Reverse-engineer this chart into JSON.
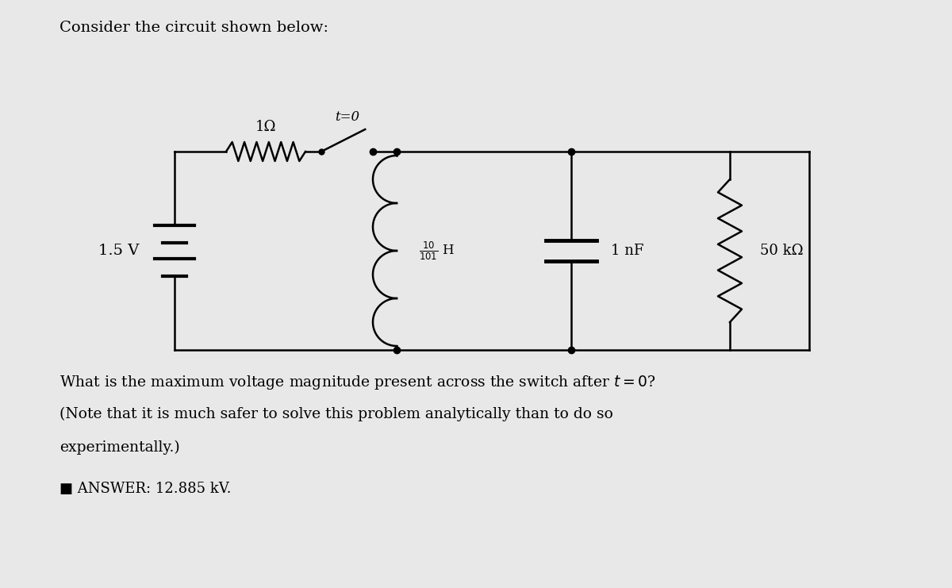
{
  "title": "Consider the circuit shown below:",
  "question_line1": "What is the maximum voltage magnitude present across the switch after $t = 0$?",
  "question_line2": "(Note that it is much safer to solve this problem analytically than to do so",
  "question_line3": "experimentally.)",
  "answer": "■ ANSWER: 12.885 kV.",
  "bg_color": "#e8e8e8",
  "voltage_label": "1.5 V",
  "resistor1_label": "1Ω",
  "switch_label": "t=0",
  "capacitor_label": "1 nF",
  "resistor2_label": "50 kΩ"
}
